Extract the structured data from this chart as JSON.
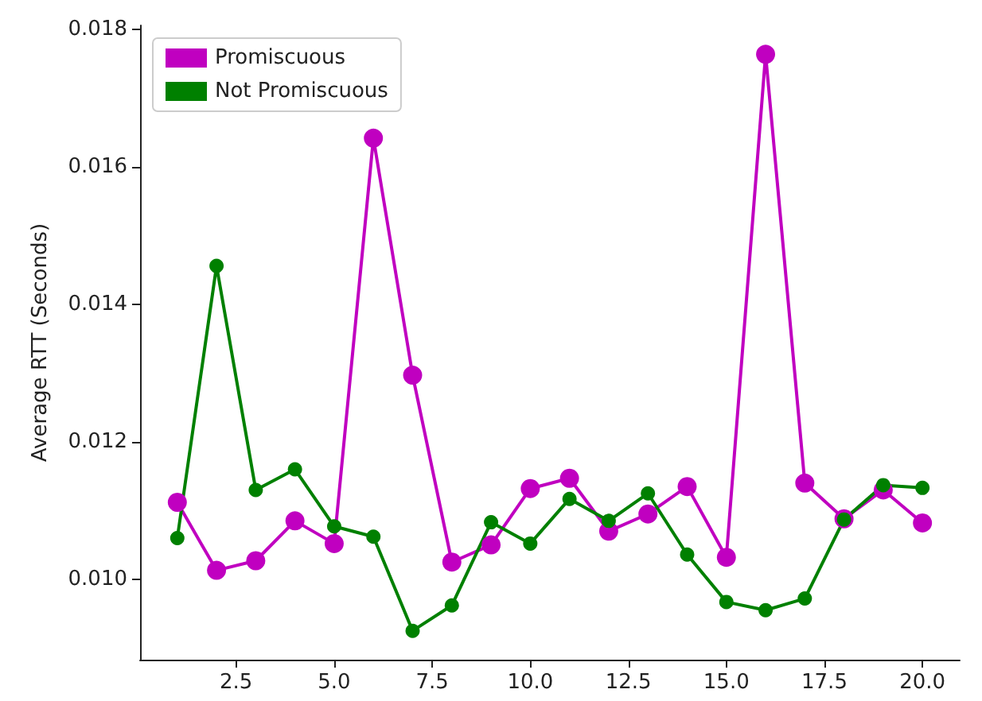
{
  "chart_data": {
    "type": "line",
    "ylabel": "Average RTT (Seconds)",
    "x": [
      1,
      2,
      3,
      4,
      5,
      6,
      7,
      8,
      9,
      10,
      11,
      12,
      13,
      14,
      15,
      16,
      17,
      18,
      19,
      20
    ],
    "series": [
      {
        "name": "Promiscuous",
        "color": "#c000c0",
        "values": [
          0.01112,
          0.01013,
          0.01027,
          0.01085,
          0.01052,
          0.01642,
          0.01297,
          0.01025,
          0.0105,
          0.01132,
          0.01147,
          0.0107,
          0.01095,
          0.01135,
          0.01032,
          0.01764,
          0.0114,
          0.01088,
          0.0113,
          0.01082
        ]
      },
      {
        "name": "Not Promiscuous",
        "color": "#008000",
        "values": [
          0.0106,
          0.01456,
          0.0113,
          0.0116,
          0.01077,
          0.01062,
          0.00925,
          0.00962,
          0.01083,
          0.01052,
          0.01117,
          0.01085,
          0.01125,
          0.01036,
          0.00967,
          0.00955,
          0.00972,
          0.01087,
          0.01137,
          0.01133
        ]
      }
    ],
    "xlim": [
      0.05,
      20.95
    ],
    "ylim": [
      0.00883,
      0.01806
    ],
    "xticks": [
      {
        "value": 2.5,
        "label": "2.5"
      },
      {
        "value": 5,
        "label": "5.0"
      },
      {
        "value": 7.5,
        "label": "7.5"
      },
      {
        "value": 10,
        "label": "10.0"
      },
      {
        "value": 12.5,
        "label": "12.5"
      },
      {
        "value": 15,
        "label": "15.0"
      },
      {
        "value": 17.5,
        "label": "17.5"
      },
      {
        "value": 20,
        "label": "20.0"
      }
    ],
    "yticks": [
      {
        "value": 0.01,
        "label": "0.010"
      },
      {
        "value": 0.012,
        "label": "0.012"
      },
      {
        "value": 0.014,
        "label": "0.014"
      },
      {
        "value": 0.016,
        "label": "0.016"
      },
      {
        "value": 0.018,
        "label": "0.018"
      }
    ],
    "legend": "top left",
    "marker": "circle",
    "line_style": "solid",
    "grid": false
  }
}
